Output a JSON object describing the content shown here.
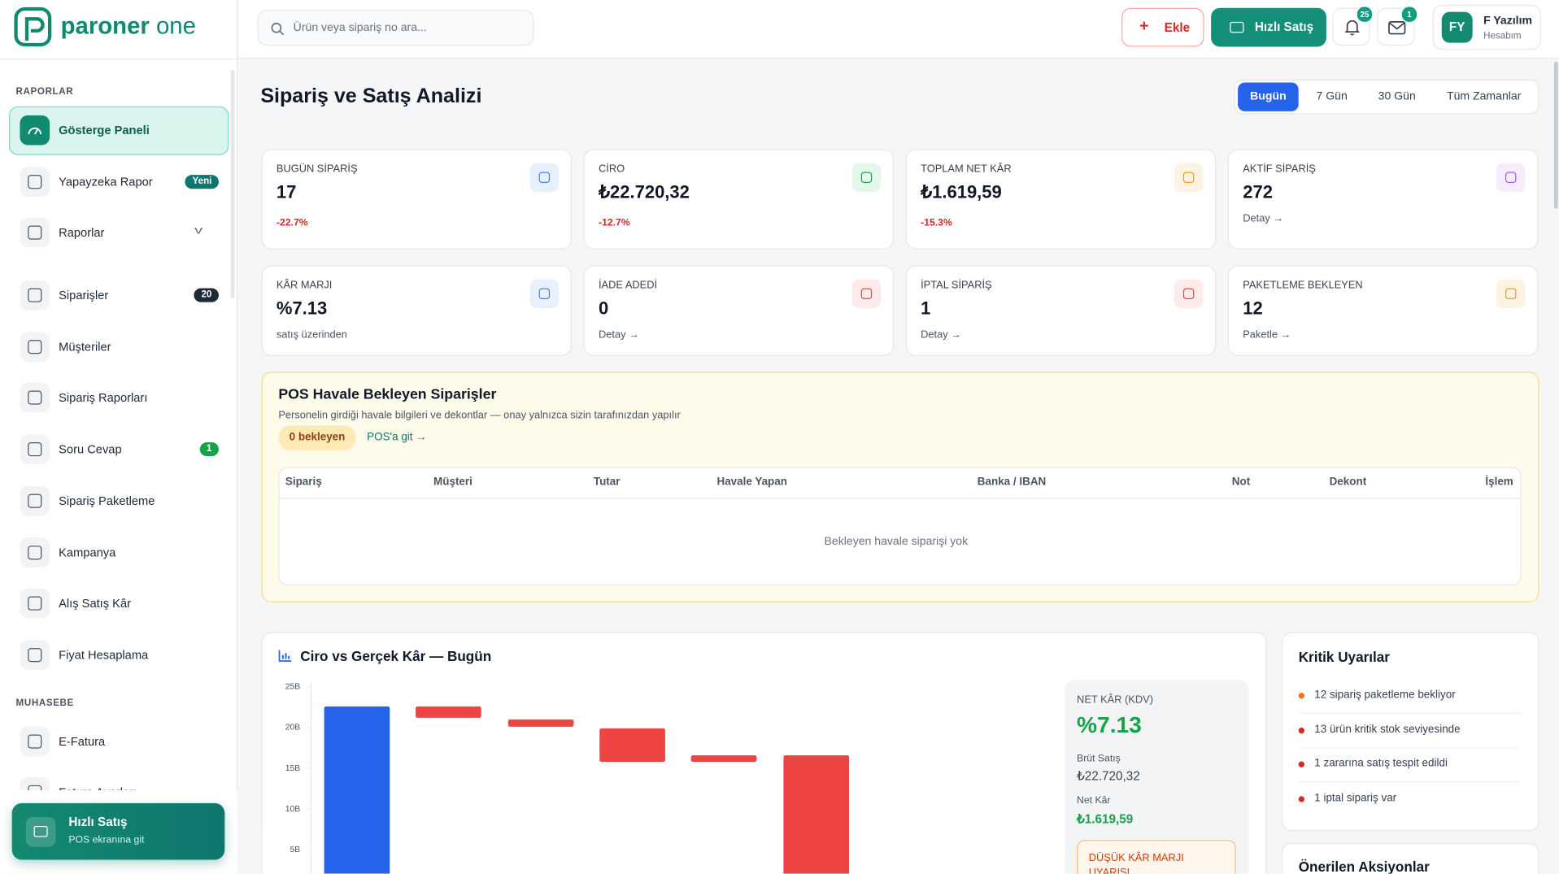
{
  "logo": {
    "brand": "paroner",
    "suffix": "one"
  },
  "search": {
    "placeholder": "Ürün veya sipariş no ara..."
  },
  "topbar": {
    "add": "Ekle",
    "quick_sale": "Hızlı Satış",
    "notifications": 25,
    "messages": 1,
    "user": {
      "initials": "FY",
      "name": "F Yazılım",
      "account": "Hesabım"
    }
  },
  "sidebar": {
    "sections": [
      {
        "title": "RAPORLAR",
        "items": [
          {
            "label": "Gösterge Paneli",
            "active": true
          },
          {
            "label": "Yapayzeka Rapor",
            "badge": "Yeni",
            "badge_color": "#0f766e"
          },
          {
            "label": "Raporlar",
            "expandable": true
          },
          {
            "label": "Siparişler",
            "badge": 20,
            "badge_color": "#1f2937"
          },
          {
            "label": "Müşteriler"
          },
          {
            "label": "Sipariş Raporları"
          },
          {
            "label": "Soru Cevap",
            "badge": 1,
            "badge_color": "#16a34a"
          },
          {
            "label": "Sipariş Paketleme"
          },
          {
            "label": "Kampanya"
          },
          {
            "label": "Alış Satış Kâr"
          },
          {
            "label": "Fiyat Hesaplama"
          }
        ]
      },
      {
        "title": "MUHASEBE",
        "items": [
          {
            "label": "E-Fatura"
          },
          {
            "label": "Fatura Ayarları"
          }
        ]
      }
    ],
    "quick_sale": {
      "title": "Hızlı Satış",
      "subtitle": "POS ekranına git"
    }
  },
  "page": {
    "title": "Sipariş ve Satış Analizi",
    "ranges": [
      "Bugün",
      "7 Gün",
      "30 Gün",
      "Tüm Zamanlar"
    ],
    "active_range": 0
  },
  "stats": [
    {
      "label": "BUGÜN SİPARİŞ",
      "value": 17,
      "delta": "-22.7%",
      "color": "#3b82f6",
      "bg": "#e8f0fe"
    },
    {
      "label": "CİRO",
      "value": "₺22.720,32",
      "delta": "-12.7%",
      "color": "#16a34a",
      "bg": "#e3f7ea"
    },
    {
      "label": "TOPLAM NET KÂR",
      "value": "₺1.619,59",
      "delta": "-15.3%",
      "color": "#f59e0b",
      "bg": "#fef3e2"
    },
    {
      "label": "AKTİF SİPARİŞ",
      "value": 272,
      "link": "Detay →",
      "color": "#a855f7",
      "bg": "#f5ecfe"
    },
    {
      "label": "KÂR MARJI",
      "value": "%7.13",
      "caption": "satış üzerinden",
      "color": "#3b82f6",
      "bg": "#e8f0fe"
    },
    {
      "label": "İADE ADEDİ",
      "value": 0,
      "link": "Detay →",
      "color": "#ef4444",
      "bg": "#fdeaea"
    },
    {
      "label": "İPTAL SİPARİŞ",
      "value": 1,
      "link": "Detay →",
      "color": "#ef4444",
      "bg": "#fdeaea"
    },
    {
      "label": "PAKETLEME BEKLEYEN",
      "value": 12,
      "link": "Paketle →",
      "color": "#f59e0b",
      "bg": "#fef3e2"
    }
  ],
  "pos": {
    "title": "POS Havale Bekleyen Siparişler",
    "subtitle": "Personelin girdiği havale bilgileri ve dekontlar — onay yalnızca sizin tarafınızdan yapılır",
    "pending": "0 bekleyen",
    "link": "POS'a git →",
    "columns": [
      "Sipariş",
      "Müşteri",
      "Tutar",
      "Havale Yapan",
      "Banka / IBAN",
      "Not",
      "Dekont",
      "İşlem"
    ],
    "empty": "Bekleyen havale siparişi yok"
  },
  "chart": {
    "type": "waterfall",
    "title": "Ciro vs Gerçek Kâr —",
    "period": "Bugün",
    "ylim": [
      0,
      25
    ],
    "yticks": [
      {
        "value": 25,
        "label": "25B"
      },
      {
        "value": 20,
        "label": "20B"
      },
      {
        "value": 15,
        "label": "15B"
      },
      {
        "value": 10,
        "label": "10B"
      },
      {
        "value": 5,
        "label": "5B"
      }
    ],
    "bars": [
      {
        "low": 0,
        "high": 22.6,
        "color": "#2563eb"
      },
      {
        "low": 21.2,
        "high": 22.6,
        "color": "#ef4444"
      },
      {
        "low": 20.1,
        "high": 21.0,
        "color": "#ef4444"
      },
      {
        "low": 15.8,
        "high": 19.9,
        "color": "#ef4444"
      },
      {
        "low": 15.8,
        "high": 16.6,
        "color": "#ef4444"
      },
      {
        "low": 1.6,
        "high": 16.6,
        "color": "#ef4444"
      }
    ]
  },
  "summary": {
    "label": "NET KÂR (KDV)",
    "value": "%7.13",
    "gross_label": "Brüt Satış",
    "gross": "₺22.720,32",
    "net_label": "Net Kâr",
    "net": "₺1.619,59",
    "warning": "DÜŞÜK KÂR MARJI UYARISI"
  },
  "alerts": {
    "title": "Kritik Uyarılar",
    "items": [
      {
        "text": "12 sipariş paketleme bekliyor",
        "color": "#f97316"
      },
      {
        "text": "13 ürün kritik stok seviyesinde",
        "color": "#dc2626"
      },
      {
        "text": "1 zararına satış tespit edildi",
        "color": "#dc2626"
      },
      {
        "text": "1 iptal sipariş var",
        "color": "#dc2626"
      }
    ]
  },
  "actions": {
    "title": "Önerilen Aksiyonlar"
  }
}
